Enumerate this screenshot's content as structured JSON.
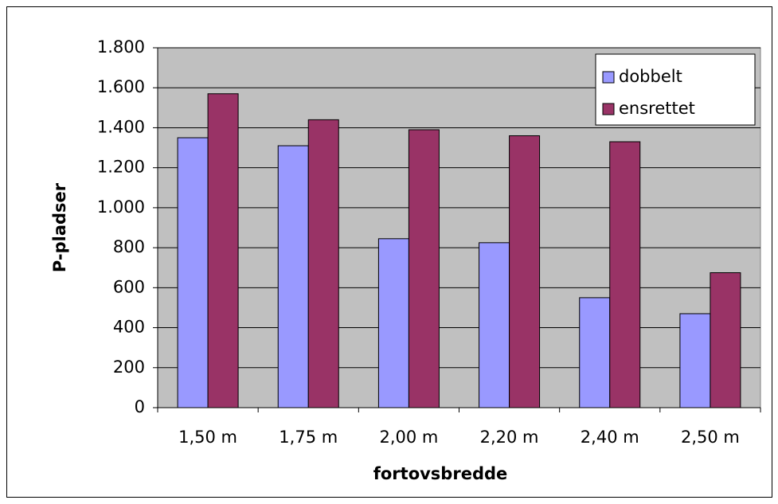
{
  "chart_data": {
    "type": "bar",
    "x_label": "fortovsbredde",
    "y_label": "P-pladser",
    "categories": [
      "1,50 m",
      "1,75 m",
      "2,00 m",
      "2,20 m",
      "2,40 m",
      "2,50 m"
    ],
    "series": [
      {
        "name": "dobbelt",
        "color": "#9999ff",
        "values": [
          1350,
          1310,
          845,
          825,
          550,
          470
        ]
      },
      {
        "name": "ensrettet",
        "color": "#993366",
        "values": [
          1570,
          1440,
          1390,
          1360,
          1330,
          675
        ]
      }
    ],
    "ylim": [
      0,
      1800
    ],
    "yticks": [
      0,
      200,
      400,
      600,
      800,
      {
        "value": 1000,
        "label": "1.000"
      },
      {
        "value": 1200,
        "label": "1.200"
      },
      {
        "value": 1400,
        "label": "1.400"
      },
      {
        "value": 1600,
        "label": "1.600"
      },
      {
        "value": 1800,
        "label": "1.800"
      }
    ],
    "grid": true,
    "legend": "top-right",
    "plot_background": "#c0c0c0"
  }
}
